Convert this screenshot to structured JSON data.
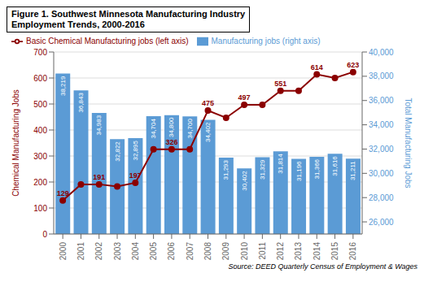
{
  "chart_data": {
    "type": "bar",
    "title": "Figure 1. Southwest Minnesota Manufacturing Industry",
    "subtitle": "Employment Trends, 2000-2016",
    "categories": [
      "2000",
      "2001",
      "2002",
      "2003",
      "2004",
      "2005",
      "2006",
      "2007",
      "2008",
      "2009",
      "2010",
      "2011",
      "2012",
      "2013",
      "2014",
      "2015",
      "2016"
    ],
    "series": [
      {
        "name": "Manufacturing jobs (right axis)",
        "type": "bar",
        "axis": "y2",
        "color": "#5B9BD5",
        "values": [
          38219,
          36843,
          34983,
          32822,
          32895,
          34704,
          34800,
          34700,
          34402,
          31293,
          30402,
          31329,
          31814,
          31196,
          31366,
          31616,
          31211
        ],
        "data_labels": true,
        "value_labels": [
          "38,219",
          "36,843",
          "34,983",
          "32,822",
          "32,895",
          "34,704",
          "34,800",
          "34,700",
          "34,402",
          "31,293",
          "30,402",
          "31,329",
          "31,814",
          "31,196",
          "31,366",
          "31,616",
          "31,211"
        ]
      },
      {
        "name": "Basic Chemical Manufacturing jobs (left axis)",
        "type": "line",
        "color": "#8B0000",
        "marker": "circle",
        "values": [
          129,
          191,
          191,
          183,
          197,
          326,
          326,
          326,
          475,
          447,
          497,
          497,
          551,
          551,
          614,
          600,
          623
        ],
        "data_labels": true,
        "value_labels": [
          "129",
          null,
          "191",
          null,
          "197",
          null,
          "326",
          null,
          "475",
          null,
          "497",
          null,
          "551",
          null,
          "614",
          null,
          "623"
        ]
      }
    ],
    "ylabel": "Chemical Manufacturing Jobs",
    "y2label": "Total Manufacturing Jobs",
    "ylim": [
      0,
      700
    ],
    "yticks": [
      0,
      100,
      200,
      300,
      400,
      500,
      600,
      700
    ],
    "y2lim": [
      25000,
      40000
    ],
    "y2ticks": [
      {
        "value": 26000,
        "label": "26,000"
      },
      {
        "value": 28000,
        "label": "28,000"
      },
      {
        "value": 30000,
        "label": "30,000"
      },
      {
        "value": 32000,
        "label": "32,000"
      },
      {
        "value": 34000,
        "label": "34,000"
      },
      {
        "value": 36000,
        "label": "36,000"
      },
      {
        "value": 38000,
        "label": "38,000"
      },
      {
        "value": 40000,
        "label": "40,000"
      }
    ],
    "grid": true,
    "legend": "top",
    "annotations": [
      "Source: DEED Quarterly Census of Employment & Wages"
    ]
  }
}
